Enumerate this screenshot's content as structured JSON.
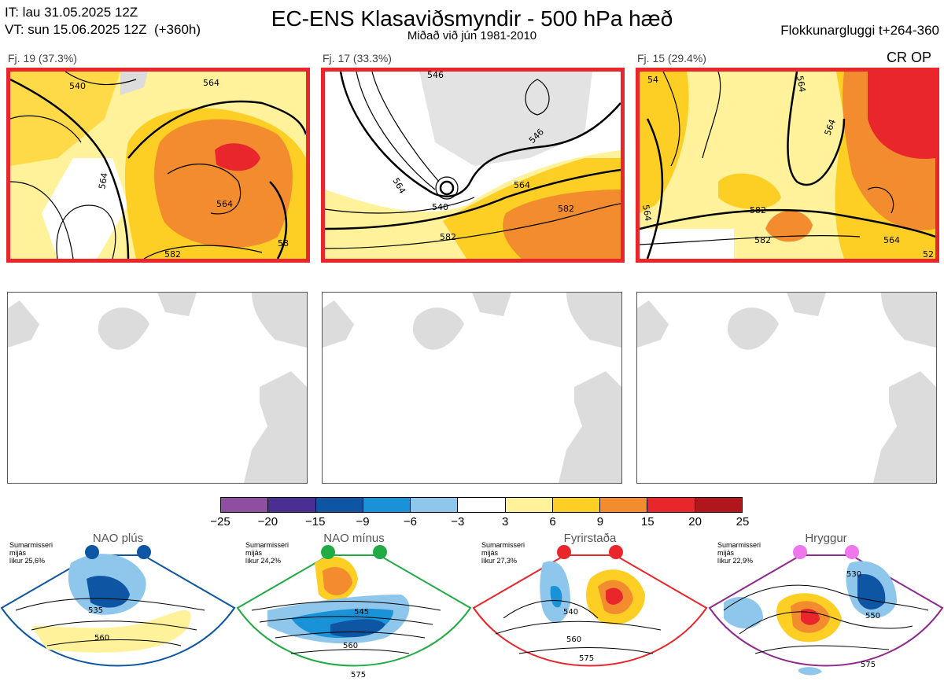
{
  "header": {
    "it_line": "IT: lau 31.05.2025 12Z",
    "vt_line": "VT: sun 15.06.2025 12Z  (+360h)",
    "title": "EC-ENS Klasaviðsmyndir - 500 hPa hæð",
    "subtitle": "Miðað við jún 1981-2010",
    "window": "Flokkunargluggi t+264-360",
    "crop_label": "CR OP"
  },
  "clusters": [
    {
      "label": "Fj. 19 (37.3%)",
      "contours": [
        "540",
        "564",
        "564",
        "564",
        "582",
        "58"
      ]
    },
    {
      "label": "Fj. 17 (33.3%)",
      "contours": [
        "546",
        "546",
        "564",
        "564",
        "540",
        "582",
        "582"
      ]
    },
    {
      "label": "Fj. 15 (29.4%)",
      "contours": [
        "564",
        "54",
        "564",
        "582",
        "564",
        "564",
        "52",
        "582"
      ]
    }
  ],
  "colorbar": {
    "ticks": [
      "−25",
      "−20",
      "−15",
      "−9",
      "−6",
      "−3",
      "3",
      "6",
      "9",
      "15",
      "20",
      "25"
    ],
    "colors": [
      "#8e4fa0",
      "#4a2e91",
      "#0e56a3",
      "#1a92d8",
      "#8fc6ec",
      "#ffffff",
      "#fff29a",
      "#fdcf25",
      "#f28c2e",
      "#e8262b",
      "#b0161b"
    ]
  },
  "regimes": [
    {
      "name": "NAO plús",
      "season": "Sumarmisseri",
      "period": "mijás",
      "prob": "líkur 25,6%",
      "marker_color": "#0e56a3",
      "frame_color": "#0e56a3",
      "contours": [
        "535",
        "560"
      ]
    },
    {
      "name": "NAO mínus",
      "season": "Sumarmisseri",
      "period": "mijás",
      "prob": "líkur 24,2%",
      "marker_color": "#22aa44",
      "frame_color": "#22aa44",
      "contours": [
        "545",
        "560",
        "575"
      ]
    },
    {
      "name": "Fyrirstaða",
      "season": "Sumarmisseri",
      "period": "mijás",
      "prob": "líkur 27,3%",
      "marker_color": "#e8262b",
      "frame_color": "#e8262b",
      "contours": [
        "540",
        "560",
        "575"
      ]
    },
    {
      "name": "Hryggur",
      "season": "Sumarmisseri",
      "period": "mijás",
      "prob": "líkur 22,9%",
      "marker_color": "#ee77ee",
      "frame_color": "#8e2a8e",
      "contours": [
        "530",
        "550",
        "575"
      ]
    }
  ]
}
